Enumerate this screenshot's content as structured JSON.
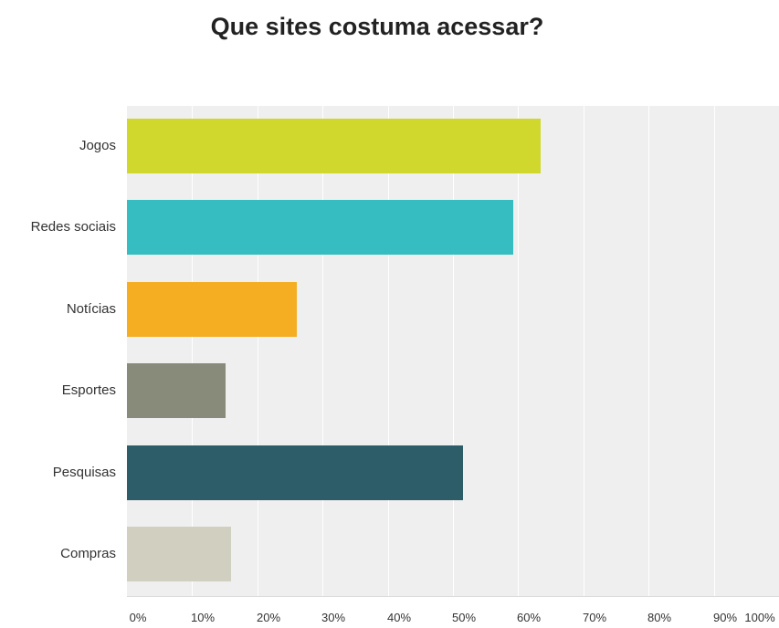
{
  "chart_data": {
    "type": "bar",
    "orientation": "horizontal",
    "title": "Que sites costuma acessar?",
    "xlabel": "",
    "ylabel": "",
    "xlim": [
      0,
      100
    ],
    "categories": [
      "Jogos",
      "Redes sociais",
      "Notícias",
      "Esportes",
      "Pesquisas",
      "Compras"
    ],
    "values": [
      63.5,
      59.3,
      26.1,
      15.1,
      51.5,
      15.9
    ],
    "x_ticks": [
      "0%",
      "10%",
      "20%",
      "30%",
      "40%",
      "50%",
      "60%",
      "70%",
      "80%",
      "90%",
      "100%"
    ],
    "colors": [
      "#d0d72d",
      "#35bdc1",
      "#f5ae22",
      "#898b7a",
      "#2e5d6a",
      "#d1cfc0"
    ],
    "grid": true,
    "legend": "none"
  }
}
